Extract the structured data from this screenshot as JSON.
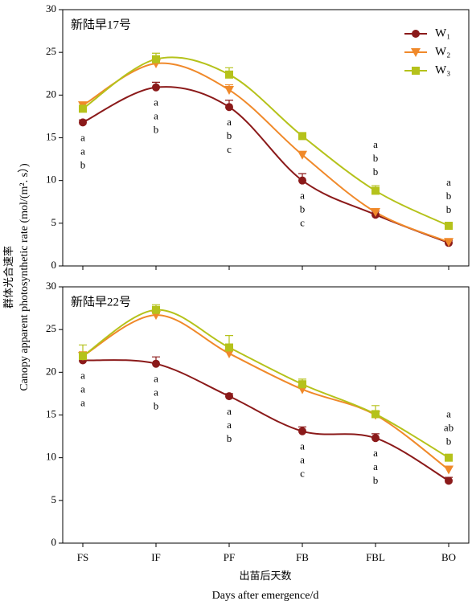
{
  "axis_labels": {
    "y_cn": "群体光合速率",
    "y_en": "Canopy apparent photosynthetic rate (mol/(m². s）)",
    "x_cn": "出苗后天数",
    "x_en": "Days after emergence/d"
  },
  "chart_data": [
    {
      "type": "line",
      "title": "新陆早17号",
      "ylim": [
        0,
        30
      ],
      "yticks": [
        0,
        5,
        10,
        15,
        20,
        25,
        30
      ],
      "legend": "upper right",
      "series": [
        {
          "name": "W₁",
          "color": "#8b1a1a",
          "marker": "circle",
          "values": [
            16.8,
            20.9,
            18.6,
            10.0,
            6.0,
            2.7
          ],
          "errors": [
            0.3,
            0.6,
            0.8,
            0.8,
            0.4,
            0.3
          ]
        },
        {
          "name": "W₂",
          "color": "#f0892a",
          "marker": "triangle-down",
          "values": [
            18.8,
            23.7,
            20.6,
            13.0,
            6.3,
            2.8
          ],
          "errors": [
            0.3,
            0.4,
            0.6,
            0.4,
            0.4,
            0.3
          ]
        },
        {
          "name": "W₃",
          "color": "#b5c21b",
          "marker": "square",
          "values": [
            18.4,
            24.2,
            22.4,
            15.2,
            8.8,
            4.7
          ],
          "errors": [
            0.4,
            0.7,
            0.8,
            0.4,
            0.6,
            0.3
          ]
        }
      ],
      "annotations": [
        [
          "a",
          "a",
          "b"
        ],
        [
          "a",
          "a",
          "b"
        ],
        [
          "a",
          "b",
          "c"
        ],
        [
          "a",
          "b",
          "c"
        ],
        [
          "a",
          "b",
          "b"
        ],
        [
          "a",
          "b",
          "b"
        ]
      ]
    },
    {
      "type": "line",
      "title": "新陆早22号",
      "ylim": [
        0,
        30
      ],
      "yticks": [
        0,
        5,
        10,
        15,
        20,
        25,
        30
      ],
      "categories": [
        "FS",
        "IF",
        "PF",
        "FB",
        "FBL",
        "BO"
      ],
      "series": [
        {
          "name": "W₁",
          "color": "#8b1a1a",
          "marker": "circle",
          "values": [
            21.4,
            21.0,
            17.2,
            13.1,
            12.3,
            7.3
          ],
          "errors": [
            0.3,
            0.8,
            0.3,
            0.5,
            0.5,
            0.4
          ]
        },
        {
          "name": "W₂",
          "color": "#f0892a",
          "marker": "triangle-down",
          "values": [
            21.9,
            26.7,
            22.2,
            18.0,
            15.0,
            8.6
          ],
          "errors": [
            0.5,
            0.4,
            0.6,
            0.4,
            0.5,
            0.3
          ]
        },
        {
          "name": "W₃",
          "color": "#b5c21b",
          "marker": "square",
          "values": [
            21.9,
            27.3,
            22.9,
            18.6,
            15.1,
            10.0
          ],
          "errors": [
            1.3,
            0.6,
            1.4,
            0.6,
            1.0,
            0.3
          ]
        }
      ],
      "annotations": [
        [
          "a",
          "a",
          "a"
        ],
        [
          "a",
          "a",
          "b"
        ],
        [
          "a",
          "a",
          "b"
        ],
        [
          "a",
          "a",
          "c"
        ],
        [
          "a",
          "a",
          "b"
        ],
        [
          "a",
          "ab",
          "b"
        ]
      ]
    }
  ]
}
